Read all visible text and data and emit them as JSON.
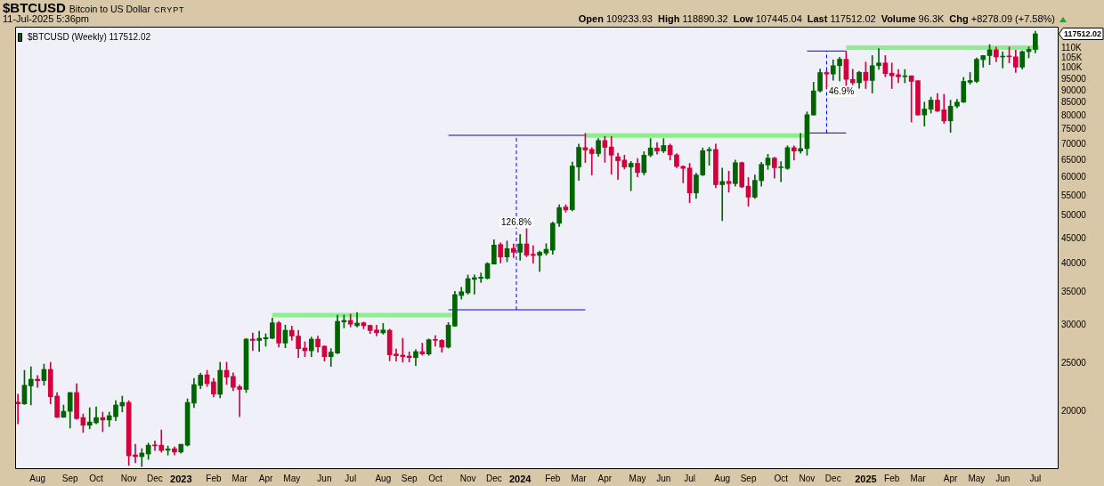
{
  "chart_data": {
    "type": "candlestick",
    "title": "$BTCUSD",
    "subtitle": "Bitcoin to US Dollar",
    "annotations": [
      "CRYPT",
      "11-Jul-2025 5:36pm",
      "117512.02",
      "Open 109233.93",
      "High 118890.32",
      "Low 107445.04",
      "Last 117512.02",
      "Volume 96.3K",
      "Chg +8278.09 (+7.58%)",
      {
        "text": "126.8%",
        "x": "2023-12-28",
        "y": 48500
      },
      {
        "text": "46.9%",
        "x": "2024-12-11",
        "y": 89400
      }
    ],
    "log": true,
    "legend": "top left",
    "xlim": [
      "2022-07-08",
      "2025-08-01"
    ],
    "xticks": [
      {
        "value": "2022-08-01",
        "label": "Aug"
      },
      {
        "value": "2022-09-05",
        "label": "Sep"
      },
      {
        "value": "2022-10-03",
        "label": "Oct"
      },
      {
        "value": "2022-11-07",
        "label": "Nov"
      },
      {
        "value": "2022-12-05",
        "label": "Dec"
      },
      {
        "value": "2023-01-02",
        "label": "2023"
      },
      {
        "value": "2023-02-06",
        "label": "Feb"
      },
      {
        "value": "2023-03-06",
        "label": "Mar"
      },
      {
        "value": "2023-04-03",
        "label": "Apr"
      },
      {
        "value": "2023-05-01",
        "label": "May"
      },
      {
        "value": "2023-06-05",
        "label": "Jun"
      },
      {
        "value": "2023-07-03",
        "label": "Jul"
      },
      {
        "value": "2023-08-07",
        "label": "Aug"
      },
      {
        "value": "2023-09-04",
        "label": "Sep"
      },
      {
        "value": "2023-10-02",
        "label": "Oct"
      },
      {
        "value": "2023-11-06",
        "label": "Nov"
      },
      {
        "value": "2023-12-04",
        "label": "Dec"
      },
      {
        "value": "2024-01-01",
        "label": "2024"
      },
      {
        "value": "2024-02-05",
        "label": "Feb"
      },
      {
        "value": "2024-03-04",
        "label": "Mar"
      },
      {
        "value": "2024-04-01",
        "label": "Apr"
      },
      {
        "value": "2024-05-06",
        "label": "May"
      },
      {
        "value": "2024-06-03",
        "label": "Jun"
      },
      {
        "value": "2024-07-01",
        "label": "Jul"
      },
      {
        "value": "2024-08-05",
        "label": "Aug"
      },
      {
        "value": "2024-09-02",
        "label": "Sep"
      },
      {
        "value": "2024-10-07",
        "label": "Oct"
      },
      {
        "value": "2024-11-04",
        "label": "Nov"
      },
      {
        "value": "2024-12-02",
        "label": "Dec"
      },
      {
        "value": "2025-01-06",
        "label": "2025"
      },
      {
        "value": "2025-02-03",
        "label": "Feb"
      },
      {
        "value": "2025-03-03",
        "label": "Mar"
      },
      {
        "value": "2025-04-07",
        "label": "Apr"
      },
      {
        "value": "2025-05-05",
        "label": "May"
      },
      {
        "value": "2025-06-02",
        "label": "Jun"
      },
      {
        "value": "2025-07-07",
        "label": "Jul"
      }
    ],
    "ylim": [
      15250,
      121500
    ],
    "yticks": [
      20000,
      25000,
      30000,
      35000,
      40000,
      45000,
      50000,
      55000,
      60000,
      65000,
      70000,
      75000,
      80000,
      85000,
      90000,
      95000,
      {
        "value": 100000,
        "label": "100K"
      },
      {
        "value": 105000,
        "label": "105K"
      },
      {
        "value": 110000,
        "label": "110K"
      }
    ],
    "series": [
      {
        "name": "$BTCUSD (Weekly) 117512.02",
        "x": [
          "2022-07-11",
          "2022-07-18",
          "2022-07-25",
          "2022-08-01",
          "2022-08-08",
          "2022-08-15",
          "2022-08-22",
          "2022-08-29",
          "2022-09-05",
          "2022-09-12",
          "2022-09-19",
          "2022-09-26",
          "2022-10-03",
          "2022-10-10",
          "2022-10-17",
          "2022-10-24",
          "2022-10-31",
          "2022-11-07",
          "2022-11-14",
          "2022-11-21",
          "2022-11-28",
          "2022-12-05",
          "2022-12-12",
          "2022-12-19",
          "2022-12-26",
          "2023-01-02",
          "2023-01-09",
          "2023-01-16",
          "2023-01-23",
          "2023-01-30",
          "2023-02-06",
          "2023-02-13",
          "2023-02-20",
          "2023-02-27",
          "2023-03-06",
          "2023-03-13",
          "2023-03-20",
          "2023-03-27",
          "2023-04-03",
          "2023-04-10",
          "2023-04-17",
          "2023-04-24",
          "2023-05-01",
          "2023-05-08",
          "2023-05-15",
          "2023-05-22",
          "2023-05-29",
          "2023-06-05",
          "2023-06-12",
          "2023-06-19",
          "2023-06-26",
          "2023-07-03",
          "2023-07-10",
          "2023-07-17",
          "2023-07-24",
          "2023-07-31",
          "2023-08-07",
          "2023-08-14",
          "2023-08-21",
          "2023-08-28",
          "2023-09-04",
          "2023-09-11",
          "2023-09-18",
          "2023-09-25",
          "2023-10-02",
          "2023-10-09",
          "2023-10-16",
          "2023-10-23",
          "2023-10-30",
          "2023-11-06",
          "2023-11-13",
          "2023-11-20",
          "2023-11-27",
          "2023-12-04",
          "2023-12-11",
          "2023-12-18",
          "2023-12-25",
          "2024-01-01",
          "2024-01-08",
          "2024-01-15",
          "2024-01-22",
          "2024-01-29",
          "2024-02-05",
          "2024-02-12",
          "2024-02-19",
          "2024-02-26",
          "2024-03-04",
          "2024-03-11",
          "2024-03-18",
          "2024-03-25",
          "2024-04-01",
          "2024-04-08",
          "2024-04-15",
          "2024-04-22",
          "2024-04-29",
          "2024-05-06",
          "2024-05-13",
          "2024-05-20",
          "2024-05-27",
          "2024-06-03",
          "2024-06-10",
          "2024-06-17",
          "2024-06-24",
          "2024-07-01",
          "2024-07-08",
          "2024-07-15",
          "2024-07-22",
          "2024-07-29",
          "2024-08-05",
          "2024-08-12",
          "2024-08-19",
          "2024-08-26",
          "2024-09-02",
          "2024-09-09",
          "2024-09-16",
          "2024-09-23",
          "2024-09-30",
          "2024-10-07",
          "2024-10-14",
          "2024-10-21",
          "2024-10-28",
          "2024-11-04",
          "2024-11-11",
          "2024-11-18",
          "2024-11-25",
          "2024-12-02",
          "2024-12-09",
          "2024-12-16",
          "2024-12-23",
          "2024-12-30",
          "2025-01-06",
          "2025-01-13",
          "2025-01-20",
          "2025-01-27",
          "2025-02-03",
          "2025-02-10",
          "2025-02-17",
          "2025-02-24",
          "2025-03-03",
          "2025-03-10",
          "2025-03-17",
          "2025-03-24",
          "2025-03-31",
          "2025-04-07",
          "2025-04-14",
          "2025-04-21",
          "2025-04-28",
          "2025-05-05",
          "2025-05-12",
          "2025-05-19",
          "2025-05-26",
          "2025-06-02",
          "2025-06-09",
          "2025-06-16",
          "2025-06-23",
          "2025-06-30",
          "2025-07-07"
        ],
        "ohlc": [
          [
            20880,
            21680,
            18860,
            20710
          ],
          [
            20710,
            24240,
            20650,
            22600
          ],
          [
            22530,
            24650,
            20600,
            23250
          ],
          [
            23250,
            23670,
            22380,
            23080
          ],
          [
            23100,
            24960,
            22600,
            24340
          ],
          [
            24340,
            25170,
            20710,
            21410
          ],
          [
            21480,
            21840,
            19420,
            19450
          ],
          [
            19450,
            20600,
            19430,
            20000
          ],
          [
            20000,
            21840,
            18490,
            21840
          ],
          [
            21840,
            22770,
            19250,
            19330
          ],
          [
            19420,
            19750,
            18110,
            18730
          ],
          [
            18730,
            20340,
            18420,
            19020
          ],
          [
            18950,
            20420,
            18860,
            19420
          ],
          [
            19420,
            19920,
            18180,
            19200
          ],
          [
            19200,
            19920,
            18620,
            19590
          ],
          [
            19500,
            21020,
            19130,
            20600
          ],
          [
            20510,
            21480,
            19940,
            20850
          ],
          [
            20850,
            21020,
            15520,
            16230
          ],
          [
            16300,
            17130,
            15700,
            16170
          ],
          [
            16170,
            16780,
            15430,
            16440
          ],
          [
            16370,
            17230,
            15960,
            17060
          ],
          [
            17060,
            17400,
            16640,
            17010
          ],
          [
            17060,
            18320,
            16500,
            16640
          ],
          [
            16660,
            16990,
            16290,
            16760
          ],
          [
            16780,
            16920,
            16290,
            16520
          ],
          [
            16520,
            17130,
            16430,
            17130
          ],
          [
            17060,
            21200,
            16990,
            20850
          ],
          [
            20780,
            23340,
            20340,
            22670
          ],
          [
            22570,
            23920,
            22230,
            23700
          ],
          [
            23730,
            24240,
            22470,
            22770
          ],
          [
            22960,
            23340,
            21390,
            21680
          ],
          [
            21660,
            25170,
            21300,
            24240
          ],
          [
            24240,
            25170,
            22670,
            23470
          ],
          [
            23560,
            23950,
            22020,
            22380
          ],
          [
            22440,
            22620,
            19500,
            22160
          ],
          [
            22160,
            28150,
            21840,
            28060
          ],
          [
            28060,
            28890,
            26570,
            27880
          ],
          [
            27880,
            29130,
            26460,
            28170
          ],
          [
            28090,
            28770,
            27140,
            28250
          ],
          [
            28170,
            30970,
            28100,
            30290
          ],
          [
            30290,
            30500,
            27020,
            27540
          ],
          [
            27540,
            29960,
            26940,
            29250
          ],
          [
            29250,
            29830,
            27900,
            28460
          ],
          [
            28460,
            29250,
            25730,
            26830
          ],
          [
            26910,
            27710,
            25840,
            26570
          ],
          [
            26570,
            28330,
            25840,
            28060
          ],
          [
            28060,
            28460,
            26390,
            27060
          ],
          [
            27140,
            27200,
            25300,
            25840
          ],
          [
            25840,
            26830,
            24680,
            26390
          ],
          [
            26280,
            31410,
            26200,
            30500
          ],
          [
            30410,
            31410,
            29580,
            30630
          ],
          [
            30630,
            31560,
            29710,
            30100
          ],
          [
            29880,
            31800,
            29680,
            30250
          ],
          [
            30290,
            30400,
            29450,
            29880
          ],
          [
            29920,
            29990,
            28800,
            29210
          ],
          [
            29290,
            29960,
            28490,
            28900
          ],
          [
            28900,
            30200,
            28720,
            29290
          ],
          [
            29250,
            29400,
            25340,
            26070
          ],
          [
            26170,
            26800,
            25300,
            25960
          ],
          [
            26030,
            28170,
            25200,
            25840
          ],
          [
            25920,
            26430,
            25200,
            25730
          ],
          [
            25730,
            26700,
            24790,
            26460
          ],
          [
            26460,
            27540,
            26030,
            26170
          ],
          [
            26170,
            28090,
            26000,
            27980
          ],
          [
            27980,
            28530,
            27140,
            27900
          ],
          [
            27900,
            28000,
            26390,
            27020
          ],
          [
            27020,
            30330,
            26900,
            29960
          ],
          [
            29830,
            35110,
            29800,
            34570
          ],
          [
            34430,
            35800,
            33850,
            35040
          ],
          [
            34870,
            37900,
            34640,
            37270
          ],
          [
            37130,
            37930,
            34640,
            37430
          ],
          [
            37320,
            38270,
            36600,
            37540
          ],
          [
            37320,
            40170,
            37200,
            40000
          ],
          [
            39890,
            44730,
            39890,
            43620
          ],
          [
            43720,
            44090,
            40120,
            41250
          ],
          [
            41250,
            44460,
            40340,
            42910
          ],
          [
            42950,
            43850,
            41110,
            42170
          ],
          [
            42170,
            45860,
            40600,
            43850
          ],
          [
            43850,
            47100,
            41280,
            41600
          ],
          [
            41780,
            43500,
            40060,
            41550
          ],
          [
            41550,
            42410,
            38540,
            42170
          ],
          [
            42000,
            43900,
            41600,
            42760
          ],
          [
            42590,
            48610,
            41780,
            48330
          ],
          [
            48300,
            52700,
            47600,
            52000
          ],
          [
            52150,
            52700,
            50900,
            51430
          ],
          [
            51500,
            64400,
            51200,
            63200
          ],
          [
            62930,
            70070,
            59110,
            68990
          ],
          [
            68900,
            73670,
            64260,
            68130
          ],
          [
            68330,
            68900,
            60610,
            67000
          ],
          [
            67000,
            71930,
            66160,
            71240
          ],
          [
            71240,
            72600,
            64300,
            68990
          ],
          [
            69100,
            72600,
            60800,
            66500
          ],
          [
            66000,
            67100,
            59300,
            64800
          ],
          [
            65000,
            66500,
            62300,
            62900
          ],
          [
            62900,
            64600,
            56300,
            64000
          ],
          [
            64000,
            65500,
            60100,
            61300
          ],
          [
            61300,
            67600,
            60600,
            66500
          ],
          [
            66500,
            71900,
            66000,
            68800
          ],
          [
            68800,
            70600,
            66800,
            67800
          ],
          [
            67800,
            71900,
            67300,
            69600
          ],
          [
            69600,
            70100,
            65000,
            66600
          ],
          [
            66600,
            67000,
            62700,
            63100
          ],
          [
            63100,
            63300,
            58400,
            62500
          ],
          [
            62600,
            64000,
            53200,
            55700
          ],
          [
            55700,
            61100,
            54300,
            60600
          ],
          [
            60600,
            68800,
            60400,
            67900
          ],
          [
            67900,
            69000,
            63400,
            68300
          ],
          [
            68300,
            70100,
            57100,
            57900
          ],
          [
            57900,
            62600,
            48900,
            58800
          ],
          [
            58800,
            61700,
            55900,
            58200
          ],
          [
            58200,
            65000,
            57500,
            64200
          ],
          [
            64200,
            64400,
            57100,
            57300
          ],
          [
            57500,
            59900,
            52300,
            54600
          ],
          [
            54600,
            60600,
            54300,
            59100
          ],
          [
            59000,
            64300,
            57500,
            63700
          ],
          [
            63500,
            66800,
            62200,
            65600
          ],
          [
            65600,
            65900,
            59700,
            62700
          ],
          [
            62700,
            64500,
            58700,
            62900
          ],
          [
            62500,
            69500,
            62200,
            68900
          ],
          [
            68900,
            69500,
            65000,
            67800
          ],
          [
            67800,
            73700,
            67100,
            68600
          ],
          [
            68600,
            81500,
            66500,
            80400
          ],
          [
            80300,
            93600,
            80200,
            89900
          ],
          [
            89900,
            99600,
            89400,
            98000
          ],
          [
            98000,
            98900,
            90800,
            97300
          ],
          [
            97300,
            104000,
            94500,
            101200
          ],
          [
            101200,
            105300,
            94200,
            104300
          ],
          [
            104300,
            108300,
            92200,
            94900
          ],
          [
            94900,
            99500,
            92500,
            93400
          ],
          [
            93400,
            98600,
            91000,
            98100
          ],
          [
            98100,
            102900,
            90900,
            94400
          ],
          [
            94400,
            106100,
            89000,
            101200
          ],
          [
            101200,
            109600,
            99500,
            102500
          ],
          [
            102500,
            106100,
            96100,
            97500
          ],
          [
            97700,
            102500,
            90900,
            96500
          ],
          [
            97000,
            99400,
            93400,
            96100
          ],
          [
            96100,
            99400,
            93400,
            96500
          ],
          [
            96500,
            96500,
            77700,
            94000
          ],
          [
            94300,
            94300,
            80200,
            80300
          ],
          [
            80300,
            85300,
            76200,
            82600
          ],
          [
            82500,
            87300,
            81000,
            86100
          ],
          [
            86100,
            88800,
            81600,
            81800
          ],
          [
            82300,
            88500,
            77200,
            78100
          ],
          [
            78100,
            86100,
            74000,
            83700
          ],
          [
            83700,
            86400,
            83000,
            85300
          ],
          [
            85300,
            95800,
            85100,
            94000
          ],
          [
            93600,
            98000,
            92800,
            94400
          ],
          [
            94000,
            104900,
            93400,
            104300
          ],
          [
            104100,
            106200,
            100500,
            106100
          ],
          [
            106100,
            111700,
            101700,
            109000
          ],
          [
            109000,
            110400,
            103100,
            105400
          ],
          [
            105400,
            108000,
            100100,
            105800
          ],
          [
            105800,
            110500,
            102500,
            105500
          ],
          [
            105500,
            108900,
            98000,
            100500
          ],
          [
            100500,
            108500,
            99600,
            108100
          ],
          [
            108100,
            110500,
            105000,
            109200
          ],
          [
            109233.93,
            118890.32,
            107445.04,
            117512.02
          ]
        ],
        "colors": [
          "#d2003c",
          "#006400",
          "#006400",
          "#d2003c",
          "#006400",
          "#d2003c",
          "#d2003c",
          "#006400",
          "#006400",
          "#d2003c",
          "#d2003c",
          "#006400",
          "#006400",
          "#d2003c",
          "#006400",
          "#006400",
          "#006400",
          "#d2003c",
          "#d2003c",
          "#006400",
          "#006400",
          "#d2003c",
          "#d2003c",
          "#006400",
          "#d2003c",
          "#006400",
          "#006400",
          "#006400",
          "#006400",
          "#d2003c",
          "#d2003c",
          "#006400",
          "#d2003c",
          "#d2003c",
          "#d2003c",
          "#006400",
          "#d2003c",
          "#006400",
          "#006400",
          "#006400",
          "#d2003c",
          "#006400",
          "#d2003c",
          "#d2003c",
          "#d2003c",
          "#006400",
          "#d2003c",
          "#d2003c",
          "#006400",
          "#006400",
          "#006400",
          "#d2003c",
          "#006400",
          "#d2003c",
          "#d2003c",
          "#d2003c",
          "#006400",
          "#d2003c",
          "#d2003c",
          "#d2003c",
          "#d2003c",
          "#006400",
          "#d2003c",
          "#006400",
          "#d2003c",
          "#d2003c",
          "#006400",
          "#006400",
          "#006400",
          "#006400",
          "#006400",
          "#006400",
          "#006400",
          "#006400",
          "#d2003c",
          "#006400",
          "#d2003c",
          "#006400",
          "#d2003c",
          "#d2003c",
          "#006400",
          "#006400",
          "#006400",
          "#006400",
          "#d2003c",
          "#006400",
          "#006400",
          "#d2003c",
          "#d2003c",
          "#006400",
          "#d2003c",
          "#d2003c",
          "#d2003c",
          "#d2003c",
          "#006400",
          "#d2003c",
          "#006400",
          "#006400",
          "#d2003c",
          "#006400",
          "#d2003c",
          "#d2003c",
          "#d2003c",
          "#d2003c",
          "#006400",
          "#006400",
          "#006400",
          "#d2003c",
          "#006400",
          "#d2003c",
          "#006400",
          "#d2003c",
          "#d2003c",
          "#006400",
          "#006400",
          "#006400",
          "#d2003c",
          "#006400",
          "#006400",
          "#d2003c",
          "#006400",
          "#006400",
          "#006400",
          "#006400",
          "#d2003c",
          "#006400",
          "#006400",
          "#d2003c",
          "#d2003c",
          "#006400",
          "#d2003c",
          "#006400",
          "#006400",
          "#d2003c",
          "#d2003c",
          "#d2003c",
          "#006400",
          "#d2003c",
          "#d2003c",
          "#006400",
          "#006400",
          "#d2003c",
          "#d2003c",
          "#006400",
          "#006400",
          "#006400",
          "#006400",
          "#006400",
          "#006400",
          "#006400",
          "#d2003c",
          "#006400",
          "#d2003c",
          "#d2003c",
          "#006400",
          "#006400",
          "#006400"
        ]
      },
      {
        "type": "line",
        "color": "#8eee8e",
        "x": [
          "2023-04-10",
          "2023-10-23"
        ],
        "values": [
          31400,
          31400
        ]
      },
      {
        "type": "line",
        "color": "#8eee8e",
        "x": [
          "2024-03-11",
          "2024-11-04"
        ],
        "values": [
          72900,
          72900
        ]
      },
      {
        "type": "line",
        "color": "#8eee8e",
        "x": [
          "2024-12-16",
          "2025-07-11"
        ],
        "values": [
          110200,
          110200
        ]
      },
      {
        "type": "line",
        "color": "#0000ff",
        "x": [
          "2023-10-16",
          "2024-03-11"
        ],
        "values": [
          32200,
          32200
        ]
      },
      {
        "type": "line",
        "color": "#0000ff",
        "x": [
          "2023-10-16",
          "2024-03-11"
        ],
        "values": [
          73000,
          73000
        ]
      },
      {
        "type": "line",
        "color": "#0000ff",
        "line_style": "dashed",
        "x": [
          "2023-12-28",
          "2023-12-28"
        ],
        "values": [
          32200,
          73000
        ]
      },
      {
        "type": "line",
        "color": "#0000ff",
        "x": [
          "2024-11-04",
          "2024-12-16"
        ],
        "values": [
          73800,
          73800
        ]
      },
      {
        "type": "line",
        "color": "#0000ff",
        "x": [
          "2024-11-04",
          "2024-12-16"
        ],
        "values": [
          108400,
          108400
        ]
      },
      {
        "type": "line",
        "color": "#0000ff",
        "line_style": "dashed",
        "x": [
          "2024-11-25",
          "2024-11-25"
        ],
        "values": [
          73800,
          108400
        ]
      }
    ]
  }
}
